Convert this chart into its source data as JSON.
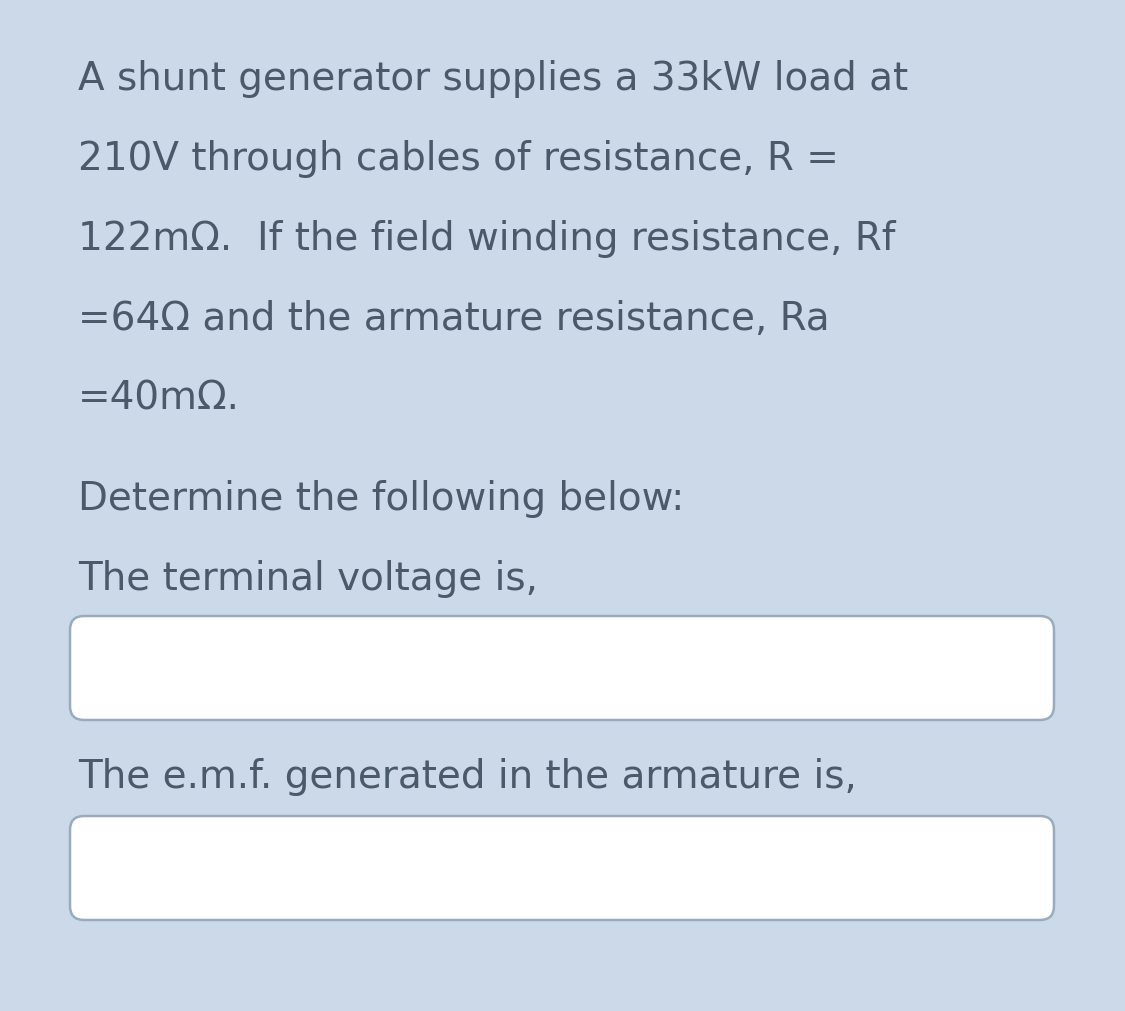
{
  "background_color": "#ccd9e8",
  "box_bg_color": "#ffffff",
  "box_border_color": "#9aabbf",
  "text_color": "#4a5a6a",
  "main_text_lines": [
    "A shunt generator supplies a 33kW load at",
    "210V through cables of resistance, R =",
    "122mΩ.  If the field winding resistance, Rf",
    "=64Ω and the armature resistance, Ra",
    "=40mΩ."
  ],
  "label1": "Determine the following below:",
  "label2": "The terminal voltage is,",
  "label3": "The e.m.f. generated in the armature is,",
  "font_size_main": 28,
  "figsize": [
    11.25,
    10.11
  ],
  "dpi": 100
}
